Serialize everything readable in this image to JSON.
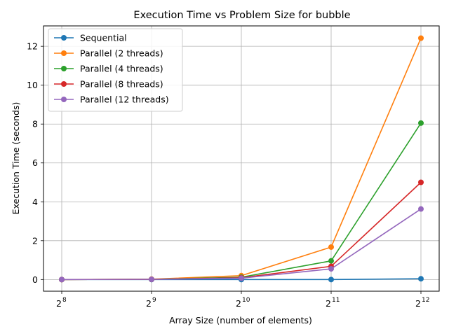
{
  "chart_data": {
    "type": "line",
    "title": "Execution Time vs Problem Size for bubble",
    "xlabel": "Array Size (number of elements)",
    "ylabel": "Execution Time (seconds)",
    "xscale": "log2",
    "x": [
      256,
      512,
      1024,
      2048,
      4096
    ],
    "x_tick_labels": [
      {
        "base": "2",
        "exp": "8"
      },
      {
        "base": "2",
        "exp": "9"
      },
      {
        "base": "2",
        "exp": "10"
      },
      {
        "base": "2",
        "exp": "11"
      },
      {
        "base": "2",
        "exp": "12"
      }
    ],
    "y_ticks": [
      0,
      2,
      4,
      6,
      8,
      10,
      12
    ],
    "ylim": [
      -0.6,
      13.05
    ],
    "grid": true,
    "legend_position": "top-left",
    "series": [
      {
        "name": "Sequential",
        "color": "#1f77b4",
        "values": [
          0.0,
          0.0,
          0.0,
          0.0,
          0.04
        ]
      },
      {
        "name": "Parallel (2 threads)",
        "color": "#ff7f0e",
        "values": [
          0.0,
          0.02,
          0.2,
          1.67,
          12.42
        ]
      },
      {
        "name": "Parallel (4 threads)",
        "color": "#2ca02c",
        "values": [
          0.0,
          0.01,
          0.12,
          0.96,
          8.05
        ]
      },
      {
        "name": "Parallel (8 threads)",
        "color": "#d62728",
        "values": [
          0.0,
          0.01,
          0.09,
          0.68,
          5.0
        ]
      },
      {
        "name": "Parallel (12 threads)",
        "color": "#9467bd",
        "values": [
          0.0,
          0.01,
          0.07,
          0.55,
          3.63
        ]
      }
    ]
  }
}
